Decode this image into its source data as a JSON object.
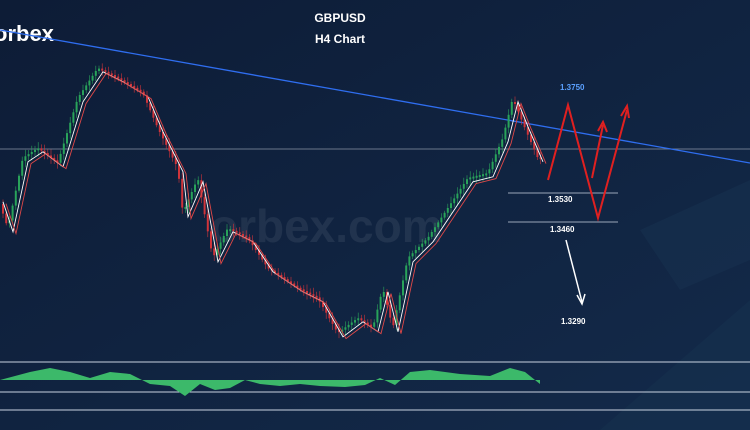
{
  "header": {
    "logo": "orbex",
    "title": "GBPUSD",
    "subtitle": "H4 Chart"
  },
  "watermark": "orbex.com",
  "levels": [
    {
      "label": "1.3750"
    },
    {
      "label": "1.3530"
    },
    {
      "label": "1.3460"
    },
    {
      "label": "1.3290"
    }
  ]
}
